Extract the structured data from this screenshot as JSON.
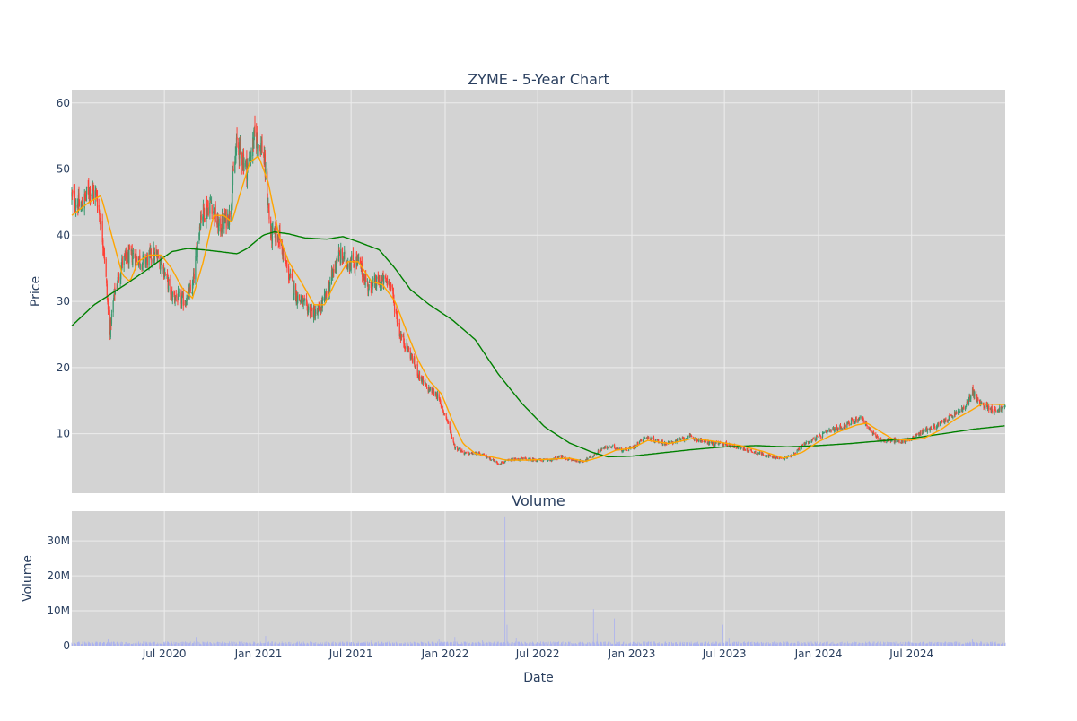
{
  "chart_data": [
    {
      "type": "candlestick",
      "title": "ZYME - 5-Year Chart",
      "ylabel": "Price",
      "xlabel": "",
      "xlim": [
        "2020-01-02",
        "2024-12-31"
      ],
      "ylim": [
        1,
        62
      ],
      "y_ticks": [
        10,
        20,
        30,
        40,
        50,
        60
      ],
      "x_ticks": [
        {
          "date": "2020-07-01",
          "label": "Jul 2020"
        },
        {
          "date": "2021-01-01",
          "label": "Jan 2021"
        },
        {
          "date": "2021-07-01",
          "label": "Jul 2021"
        },
        {
          "date": "2022-01-01",
          "label": "Jan 2022"
        },
        {
          "date": "2022-07-01",
          "label": "Jul 2022"
        },
        {
          "date": "2023-01-01",
          "label": "Jan 2023"
        },
        {
          "date": "2023-07-01",
          "label": "Jul 2023"
        },
        {
          "date": "2024-01-01",
          "label": "Jan 2024"
        },
        {
          "date": "2024-07-01",
          "label": "Jul 2024"
        }
      ],
      "grid": true,
      "close_anchors": [
        [
          "2020-01-02",
          46
        ],
        [
          "2020-01-20",
          44
        ],
        [
          "2020-02-05",
          47
        ],
        [
          "2020-02-20",
          46
        ],
        [
          "2020-03-05",
          38
        ],
        [
          "2020-03-16",
          25
        ],
        [
          "2020-03-25",
          31
        ],
        [
          "2020-04-10",
          36
        ],
        [
          "2020-05-01",
          37
        ],
        [
          "2020-05-20",
          36
        ],
        [
          "2020-06-10",
          37
        ],
        [
          "2020-06-25",
          36
        ],
        [
          "2020-07-15",
          31
        ],
        [
          "2020-08-10",
          30
        ],
        [
          "2020-08-25",
          32
        ],
        [
          "2020-09-10",
          43
        ],
        [
          "2020-10-01",
          45
        ],
        [
          "2020-10-15",
          41
        ],
        [
          "2020-11-05",
          43
        ],
        [
          "2020-11-20",
          54
        ],
        [
          "2020-12-10",
          50
        ],
        [
          "2020-12-25",
          55
        ],
        [
          "2021-01-10",
          53
        ],
        [
          "2021-01-25",
          40
        ],
        [
          "2021-02-10",
          40
        ],
        [
          "2021-02-25",
          35
        ],
        [
          "2021-03-15",
          31
        ],
        [
          "2021-04-05",
          29
        ],
        [
          "2021-04-25",
          28
        ],
        [
          "2021-05-15",
          31
        ],
        [
          "2021-06-05",
          37
        ],
        [
          "2021-06-25",
          36
        ],
        [
          "2021-07-15",
          36
        ],
        [
          "2021-08-05",
          32
        ],
        [
          "2021-08-25",
          33
        ],
        [
          "2021-09-15",
          33
        ],
        [
          "2021-10-05",
          25
        ],
        [
          "2021-10-25",
          22
        ],
        [
          "2021-11-10",
          19
        ],
        [
          "2021-11-25",
          17
        ],
        [
          "2021-12-15",
          16
        ],
        [
          "2022-01-05",
          12
        ],
        [
          "2022-01-20",
          8
        ],
        [
          "2022-02-10",
          7
        ],
        [
          "2022-03-05",
          7
        ],
        [
          "2022-03-25",
          6.5
        ],
        [
          "2022-04-15",
          5.5
        ],
        [
          "2022-05-10",
          6
        ],
        [
          "2022-06-05",
          6.2
        ],
        [
          "2022-07-01",
          6
        ],
        [
          "2022-07-25",
          6
        ],
        [
          "2022-08-15",
          6.5
        ],
        [
          "2022-09-05",
          6
        ],
        [
          "2022-09-25",
          5.8
        ],
        [
          "2022-10-15",
          6.5
        ],
        [
          "2022-11-05",
          7.8
        ],
        [
          "2022-11-25",
          8
        ],
        [
          "2022-12-15",
          7.5
        ],
        [
          "2023-01-05",
          8
        ],
        [
          "2023-01-25",
          9.5
        ],
        [
          "2023-02-15",
          9
        ],
        [
          "2023-03-10",
          8.5
        ],
        [
          "2023-04-01",
          9
        ],
        [
          "2023-04-25",
          9.5
        ],
        [
          "2023-05-15",
          9
        ],
        [
          "2023-06-10",
          8.5
        ],
        [
          "2023-07-01",
          8.5
        ],
        [
          "2023-07-25",
          8
        ],
        [
          "2023-08-15",
          7.5
        ],
        [
          "2023-09-10",
          7
        ],
        [
          "2023-10-01",
          6.5
        ],
        [
          "2023-10-25",
          6.2
        ],
        [
          "2023-11-15",
          7
        ],
        [
          "2023-12-05",
          8.5
        ],
        [
          "2024-01-01",
          9.5
        ],
        [
          "2024-01-25",
          10.5
        ],
        [
          "2024-02-15",
          11
        ],
        [
          "2024-03-10",
          12
        ],
        [
          "2024-03-25",
          12.5
        ],
        [
          "2024-04-15",
          10
        ],
        [
          "2024-05-05",
          9
        ],
        [
          "2024-05-25",
          9
        ],
        [
          "2024-06-15",
          8.8
        ],
        [
          "2024-07-05",
          9.5
        ],
        [
          "2024-07-25",
          10.5
        ],
        [
          "2024-08-15",
          11
        ],
        [
          "2024-09-05",
          12
        ],
        [
          "2024-09-25",
          13
        ],
        [
          "2024-10-15",
          14
        ],
        [
          "2024-10-28",
          16.5
        ],
        [
          "2024-11-10",
          14.5
        ],
        [
          "2024-11-25",
          14.2
        ],
        [
          "2024-12-10",
          13.5
        ],
        [
          "2024-12-31",
          14
        ]
      ],
      "ma20_anchors": [
        [
          "2020-01-02",
          43
        ],
        [
          "2020-02-05",
          45
        ],
        [
          "2020-02-28",
          46
        ],
        [
          "2020-03-20",
          40
        ],
        [
          "2020-04-10",
          34
        ],
        [
          "2020-04-25",
          33
        ],
        [
          "2020-05-10",
          36
        ],
        [
          "2020-06-01",
          37
        ],
        [
          "2020-06-25",
          37
        ],
        [
          "2020-07-15",
          35
        ],
        [
          "2020-08-05",
          32
        ],
        [
          "2020-08-25",
          30.5
        ],
        [
          "2020-09-15",
          36
        ],
        [
          "2020-10-05",
          43
        ],
        [
          "2020-10-25",
          43
        ],
        [
          "2020-11-10",
          42
        ],
        [
          "2020-11-25",
          46
        ],
        [
          "2020-12-15",
          51
        ],
        [
          "2021-01-01",
          52
        ],
        [
          "2021-01-20",
          48
        ],
        [
          "2021-02-10",
          40
        ],
        [
          "2021-03-01",
          36
        ],
        [
          "2021-03-25",
          33
        ],
        [
          "2021-04-20",
          29.5
        ],
        [
          "2021-05-10",
          29.5
        ],
        [
          "2021-06-01",
          33
        ],
        [
          "2021-06-25",
          36
        ],
        [
          "2021-07-15",
          36
        ],
        [
          "2021-08-10",
          33
        ],
        [
          "2021-09-01",
          32.5
        ],
        [
          "2021-09-25",
          30
        ],
        [
          "2021-10-20",
          25
        ],
        [
          "2021-11-10",
          21
        ],
        [
          "2021-12-01",
          18
        ],
        [
          "2021-12-25",
          16
        ],
        [
          "2022-01-15",
          12
        ],
        [
          "2022-02-05",
          8.5
        ],
        [
          "2022-03-01",
          7
        ],
        [
          "2022-04-01",
          6.5
        ],
        [
          "2022-05-01",
          6
        ],
        [
          "2022-06-01",
          6
        ],
        [
          "2022-07-15",
          6.1
        ],
        [
          "2022-09-01",
          6.3
        ],
        [
          "2022-10-01",
          5.8
        ],
        [
          "2022-11-01",
          6.5
        ],
        [
          "2022-12-01",
          7.5
        ],
        [
          "2023-01-01",
          7.8
        ],
        [
          "2023-02-01",
          9
        ],
        [
          "2023-03-15",
          8.5
        ],
        [
          "2023-05-01",
          9.3
        ],
        [
          "2023-06-15",
          8.8
        ],
        [
          "2023-08-01",
          8.2
        ],
        [
          "2023-09-15",
          7.3
        ],
        [
          "2023-10-25",
          6.3
        ],
        [
          "2023-12-01",
          7.2
        ],
        [
          "2024-01-01",
          8.8
        ],
        [
          "2024-02-10",
          10.3
        ],
        [
          "2024-03-15",
          11.3
        ],
        [
          "2024-04-05",
          11.6
        ],
        [
          "2024-05-01",
          10.3
        ],
        [
          "2024-05-25",
          9.2
        ],
        [
          "2024-06-25",
          9.0
        ],
        [
          "2024-07-25",
          9.3
        ],
        [
          "2024-08-25",
          10.5
        ],
        [
          "2024-09-25",
          12.2
        ],
        [
          "2024-10-25",
          13.5
        ],
        [
          "2024-11-15",
          14.5
        ],
        [
          "2024-12-31",
          14.4
        ]
      ],
      "ma200_anchors": [
        [
          "2020-01-02",
          26.3
        ],
        [
          "2020-02-15",
          29.5
        ],
        [
          "2020-04-15",
          32.5
        ],
        [
          "2020-06-01",
          35
        ],
        [
          "2020-07-15",
          37.5
        ],
        [
          "2020-08-15",
          38
        ],
        [
          "2020-09-15",
          37.8
        ],
        [
          "2020-10-20",
          37.5
        ],
        [
          "2020-11-20",
          37.2
        ],
        [
          "2020-12-10",
          38
        ],
        [
          "2021-01-10",
          40
        ],
        [
          "2021-02-01",
          40.5
        ],
        [
          "2021-03-01",
          40.2
        ],
        [
          "2021-04-01",
          39.6
        ],
        [
          "2021-05-15",
          39.4
        ],
        [
          "2021-06-15",
          39.8
        ],
        [
          "2021-07-15",
          39
        ],
        [
          "2021-08-25",
          37.8
        ],
        [
          "2021-09-25",
          35
        ],
        [
          "2021-10-25",
          31.8
        ],
        [
          "2021-12-01",
          29.5
        ],
        [
          "2022-01-15",
          27.2
        ],
        [
          "2022-03-01",
          24.2
        ],
        [
          "2022-04-15",
          19
        ],
        [
          "2022-06-01",
          14.5
        ],
        [
          "2022-07-15",
          11
        ],
        [
          "2022-09-01",
          8.6
        ],
        [
          "2022-10-15",
          7.2
        ],
        [
          "2022-11-15",
          6.5
        ],
        [
          "2023-01-01",
          6.6
        ],
        [
          "2023-03-01",
          7.1
        ],
        [
          "2023-05-01",
          7.6
        ],
        [
          "2023-07-01",
          8
        ],
        [
          "2023-09-01",
          8.2
        ],
        [
          "2023-11-01",
          8
        ],
        [
          "2024-01-01",
          8.2
        ],
        [
          "2024-03-01",
          8.5
        ],
        [
          "2024-05-01",
          8.9
        ],
        [
          "2024-07-01",
          9.3
        ],
        [
          "2024-09-01",
          10
        ],
        [
          "2024-11-01",
          10.7
        ],
        [
          "2024-12-31",
          11.2
        ]
      ],
      "colors": {
        "up": "#3d9970",
        "down": "#ff4136",
        "ma20": "#ffa500",
        "ma200": "#008000"
      },
      "background": "#d3d3d3",
      "gridcolor": "#ececec"
    },
    {
      "type": "bar",
      "title": "Volume",
      "ylabel": "Volume",
      "xlabel": "Date",
      "ylim": [
        0,
        38500000
      ],
      "y_ticks": [
        {
          "value": 0,
          "label": "0"
        },
        {
          "value": 10000000,
          "label": "10M"
        },
        {
          "value": 20000000,
          "label": "20M"
        },
        {
          "value": 30000000,
          "label": "30M"
        }
      ],
      "base_volume": 800000,
      "spikes": [
        [
          "2020-02-28",
          1500000
        ],
        [
          "2020-03-13",
          1800000
        ],
        [
          "2020-09-01",
          2500000
        ],
        [
          "2021-01-15",
          2800000
        ],
        [
          "2021-08-10",
          1500000
        ],
        [
          "2021-12-20",
          1800000
        ],
        [
          "2022-01-20",
          2500000
        ],
        [
          "2022-03-15",
          1500000
        ],
        [
          "2022-04-28",
          37000000
        ],
        [
          "2022-05-02",
          6000000
        ],
        [
          "2022-05-20",
          2200000
        ],
        [
          "2022-10-18",
          10500000
        ],
        [
          "2022-10-25",
          3500000
        ],
        [
          "2022-11-28",
          7800000
        ],
        [
          "2023-06-28",
          6000000
        ],
        [
          "2023-07-10",
          2000000
        ],
        [
          "2024-10-28",
          1800000
        ]
      ],
      "bar_color": "#aab1f0",
      "background": "#d3d3d3",
      "gridcolor": "#ececec"
    }
  ]
}
